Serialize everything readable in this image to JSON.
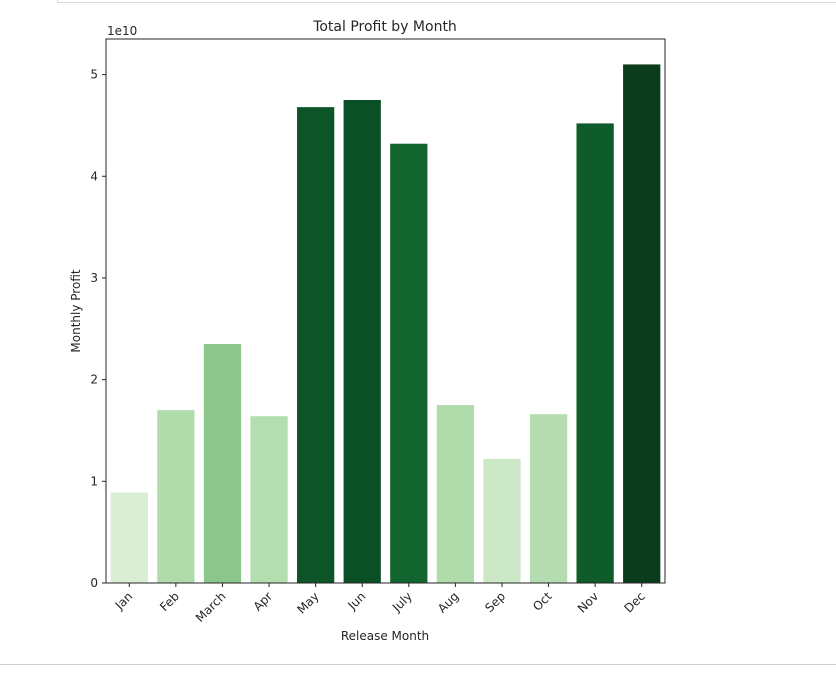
{
  "chart_data": {
    "type": "bar",
    "title": "Total Profit by Month",
    "xlabel": "Release Month",
    "ylabel": "Monthly Profit",
    "y_offset_label": "1e10",
    "categories": [
      "Jan",
      "Feb",
      "March",
      "Apr",
      "May",
      "Jun",
      "July",
      "Aug",
      "Sep",
      "Oct",
      "Nov",
      "Dec"
    ],
    "values": [
      8900000000.0,
      17000000000.0,
      23500000000.0,
      16400000000.0,
      46800000000.0,
      47500000000.0,
      43200000000.0,
      17500000000.0,
      12200000000.0,
      16600000000.0,
      45200000000.0,
      51000000000.0
    ],
    "colors": [
      "#d9eed4",
      "#b0dbaa",
      "#8cc68a",
      "#b3deaf",
      "#0e5429",
      "#0b4f26",
      "#13652f",
      "#b0dbaa",
      "#cce8c6",
      "#b5dcb0",
      "#0e5c2a",
      "#0a3c1c"
    ],
    "ylim": [
      0,
      53500000000
    ],
    "yticks": [
      0,
      10000000000,
      20000000000,
      30000000000,
      40000000000,
      50000000000
    ],
    "ytick_labels": [
      "0",
      "1",
      "2",
      "3",
      "4",
      "5"
    ],
    "grid": false,
    "legend": "none"
  }
}
